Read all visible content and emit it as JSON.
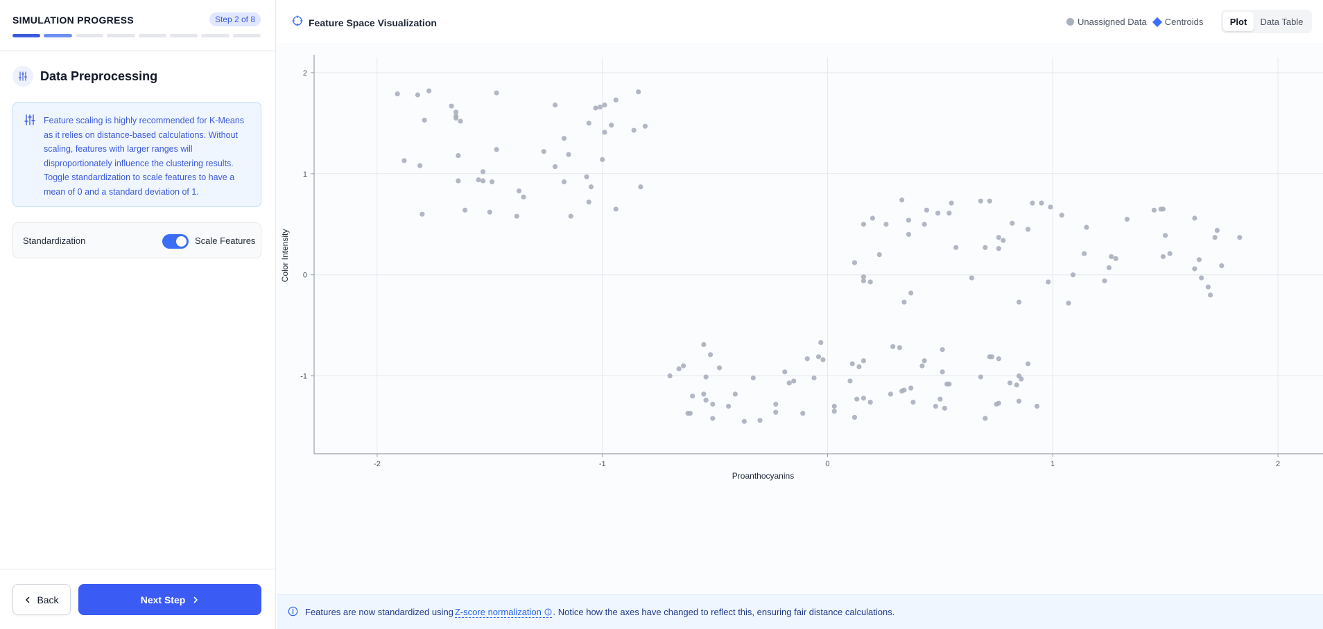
{
  "sidebar": {
    "progress_title": "SIMULATION PROGRESS",
    "step_badge": "Step 2 of 8",
    "progress": {
      "total_steps": 8,
      "current_step": 2
    },
    "section_icon": "sliders-icon",
    "section_title": "Data Preprocessing",
    "info_icon": "sliders-icon",
    "info_text": "Feature scaling is highly recommended for K-Means as it relies on distance-based calculations. Without scaling, features with larger ranges will disproportionately influence the clustering results. Toggle standardization to scale features to have a mean of 0 and a standard deviation of 1.",
    "standardization_label": "Standardization",
    "toggle_on": true,
    "toggle_label": "Scale Features",
    "back_label": "Back",
    "next_label": "Next Step"
  },
  "main": {
    "title_icon": "crosshair-icon",
    "title": "Feature Space Visualization",
    "legend": {
      "unassigned": "Unassigned Data",
      "centroids": "Centroids"
    },
    "view_tabs": [
      "Plot",
      "Data Table"
    ],
    "active_tab": "Plot",
    "footer": {
      "before": "Features are now standardized using",
      "link": "Z-score normalization",
      "after": ". Notice how the axes have changed to reflect this, ensuring fair distance calculations."
    }
  },
  "colors": {
    "accent": "#3b5bf5",
    "point": "#a8afbd",
    "centroid": "#3b6ef5"
  },
  "chart_data": {
    "type": "scatter",
    "xlabel": "Proanthocyanins",
    "ylabel": "Color Intensity",
    "xlim": [
      -2.28,
      2.2
    ],
    "ylim": [
      -1.77,
      2.15
    ],
    "xticks": [
      -2,
      -1,
      0,
      1,
      2
    ],
    "yticks": [
      -1,
      0,
      1,
      2
    ],
    "grid": true,
    "series": [
      {
        "name": "Unassigned Data",
        "points": [
          [
            -1.91,
            1.79
          ],
          [
            -1.82,
            1.78
          ],
          [
            -1.77,
            1.82
          ],
          [
            -1.79,
            1.53
          ],
          [
            -1.88,
            1.13
          ],
          [
            -1.81,
            1.08
          ],
          [
            -1.8,
            0.6
          ],
          [
            -1.67,
            1.67
          ],
          [
            -1.65,
            1.61
          ],
          [
            -1.65,
            1.57
          ],
          [
            -1.65,
            1.55
          ],
          [
            -1.63,
            1.52
          ],
          [
            -1.64,
            1.18
          ],
          [
            -1.64,
            0.93
          ],
          [
            -1.61,
            0.64
          ],
          [
            -1.47,
            1.8
          ],
          [
            -1.47,
            1.24
          ],
          [
            -1.55,
            0.94
          ],
          [
            -1.53,
            1.02
          ],
          [
            -1.53,
            0.93
          ],
          [
            -1.49,
            0.92
          ],
          [
            -1.5,
            0.62
          ],
          [
            -1.37,
            0.83
          ],
          [
            -1.35,
            0.77
          ],
          [
            -1.38,
            0.58
          ],
          [
            -1.26,
            1.22
          ],
          [
            -1.21,
            1.68
          ],
          [
            -1.21,
            1.07
          ],
          [
            -1.17,
            1.35
          ],
          [
            -1.17,
            0.92
          ],
          [
            -1.15,
            1.19
          ],
          [
            -1.14,
            0.58
          ],
          [
            -1.06,
            1.5
          ],
          [
            -1.07,
            0.97
          ],
          [
            -1.06,
            0.72
          ],
          [
            -1.05,
            0.87
          ],
          [
            -1.03,
            1.65
          ],
          [
            -1.01,
            1.66
          ],
          [
            -1.0,
            1.14
          ],
          [
            -0.99,
            1.68
          ],
          [
            -0.99,
            1.41
          ],
          [
            -0.96,
            1.48
          ],
          [
            -0.94,
            1.73
          ],
          [
            -0.94,
            0.65
          ],
          [
            -0.86,
            1.43
          ],
          [
            -0.84,
            1.81
          ],
          [
            -0.83,
            0.87
          ],
          [
            -0.81,
            1.47
          ],
          [
            -0.7,
            -1.0
          ],
          [
            -0.66,
            -0.93
          ],
          [
            -0.64,
            -0.9
          ],
          [
            -0.62,
            -1.37
          ],
          [
            -0.61,
            -1.37
          ],
          [
            -0.6,
            -1.2
          ],
          [
            -0.55,
            -1.18
          ],
          [
            -0.55,
            -0.69
          ],
          [
            -0.54,
            -1.24
          ],
          [
            -0.54,
            -1.01
          ],
          [
            -0.52,
            -0.79
          ],
          [
            -0.51,
            -1.28
          ],
          [
            -0.51,
            -1.42
          ],
          [
            -0.48,
            -0.92
          ],
          [
            -0.44,
            -1.3
          ],
          [
            -0.41,
            -1.18
          ],
          [
            -0.37,
            -1.45
          ],
          [
            -0.33,
            -1.02
          ],
          [
            -0.3,
            -1.44
          ],
          [
            -0.23,
            -1.36
          ],
          [
            -0.23,
            -1.28
          ],
          [
            -0.19,
            -0.96
          ],
          [
            -0.17,
            -1.07
          ],
          [
            -0.15,
            -1.05
          ],
          [
            -0.11,
            -1.37
          ],
          [
            -0.09,
            -0.83
          ],
          [
            -0.06,
            -1.02
          ],
          [
            -0.04,
            -0.81
          ],
          [
            -0.03,
            -0.67
          ],
          [
            -0.02,
            -0.84
          ],
          [
            0.03,
            -1.35
          ],
          [
            0.03,
            -1.3
          ],
          [
            0.1,
            -1.05
          ],
          [
            0.11,
            -0.88
          ],
          [
            0.13,
            -1.23
          ],
          [
            0.12,
            -1.41
          ],
          [
            0.14,
            -0.91
          ],
          [
            0.16,
            -1.22
          ],
          [
            0.16,
            -0.85
          ],
          [
            0.19,
            -1.26
          ],
          [
            0.28,
            -1.18
          ],
          [
            0.29,
            -0.71
          ],
          [
            0.32,
            -0.72
          ],
          [
            0.33,
            -1.15
          ],
          [
            0.34,
            -1.14
          ],
          [
            0.37,
            -1.12
          ],
          [
            0.38,
            -1.26
          ],
          [
            0.42,
            -0.9
          ],
          [
            0.43,
            -0.85
          ],
          [
            0.48,
            -1.3
          ],
          [
            0.5,
            -1.23
          ],
          [
            0.51,
            -0.74
          ],
          [
            0.51,
            -0.96
          ],
          [
            0.52,
            -1.32
          ],
          [
            0.53,
            -1.08
          ],
          [
            0.54,
            -1.08
          ],
          [
            0.68,
            -1.01
          ],
          [
            0.7,
            -1.42
          ],
          [
            0.72,
            -0.81
          ],
          [
            0.73,
            -0.81
          ],
          [
            0.75,
            -1.28
          ],
          [
            0.76,
            -0.83
          ],
          [
            0.76,
            -1.27
          ],
          [
            0.81,
            -1.07
          ],
          [
            0.84,
            -1.09
          ],
          [
            0.85,
            -1.0
          ],
          [
            0.86,
            -1.03
          ],
          [
            0.85,
            -1.25
          ],
          [
            0.89,
            -0.88
          ],
          [
            0.93,
            -1.3
          ],
          [
            0.12,
            0.12
          ],
          [
            0.16,
            0.5
          ],
          [
            0.16,
            -0.02
          ],
          [
            0.16,
            -0.06
          ],
          [
            0.19,
            -0.07
          ],
          [
            0.2,
            0.56
          ],
          [
            0.23,
            0.2
          ],
          [
            0.26,
            0.5
          ],
          [
            0.33,
            0.74
          ],
          [
            0.34,
            -0.27
          ],
          [
            0.36,
            0.54
          ],
          [
            0.36,
            0.4
          ],
          [
            0.37,
            -0.18
          ],
          [
            0.43,
            0.5
          ],
          [
            0.44,
            0.64
          ],
          [
            0.49,
            0.61
          ],
          [
            0.54,
            0.61
          ],
          [
            0.55,
            0.71
          ],
          [
            0.57,
            0.27
          ],
          [
            0.64,
            -0.03
          ],
          [
            0.68,
            0.73
          ],
          [
            0.7,
            0.27
          ],
          [
            0.72,
            0.73
          ],
          [
            0.76,
            0.37
          ],
          [
            0.76,
            0.26
          ],
          [
            0.78,
            0.34
          ],
          [
            0.82,
            0.51
          ],
          [
            0.85,
            -0.27
          ],
          [
            0.89,
            0.45
          ],
          [
            0.91,
            0.71
          ],
          [
            0.95,
            0.71
          ],
          [
            0.98,
            -0.07
          ],
          [
            0.99,
            0.67
          ],
          [
            1.04,
            0.59
          ],
          [
            1.07,
            -0.28
          ],
          [
            1.09,
            0.0
          ],
          [
            1.14,
            0.21
          ],
          [
            1.15,
            0.47
          ],
          [
            1.23,
            -0.06
          ],
          [
            1.25,
            0.07
          ],
          [
            1.26,
            0.18
          ],
          [
            1.28,
            0.16
          ],
          [
            1.33,
            0.55
          ],
          [
            1.45,
            0.64
          ],
          [
            1.48,
            0.65
          ],
          [
            1.49,
            0.65
          ],
          [
            1.49,
            0.18
          ],
          [
            1.5,
            0.39
          ],
          [
            1.52,
            0.21
          ],
          [
            1.63,
            0.56
          ],
          [
            1.63,
            0.06
          ],
          [
            1.65,
            0.15
          ],
          [
            1.66,
            -0.03
          ],
          [
            1.69,
            -0.12
          ],
          [
            1.7,
            -0.2
          ],
          [
            1.72,
            0.37
          ],
          [
            1.73,
            0.44
          ],
          [
            1.75,
            0.09
          ],
          [
            1.83,
            0.37
          ]
        ]
      }
    ]
  }
}
